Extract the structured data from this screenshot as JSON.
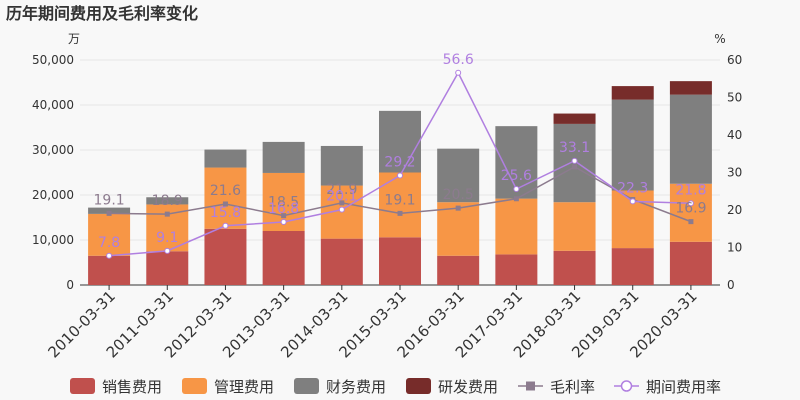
{
  "chart_data": {
    "type": "bar",
    "title": "历年期间费用及毛利率变化",
    "left_unit": "万",
    "right_unit": "%",
    "categories": [
      "2010-03-31",
      "2011-03-31",
      "2012-03-31",
      "2013-03-31",
      "2014-03-31",
      "2015-03-31",
      "2016-03-31",
      "2017-03-31",
      "2018-03-31",
      "2019-03-31",
      "2020-03-31"
    ],
    "left_axis": {
      "min": 0,
      "max": 50000,
      "ticks": [
        "0",
        "10,000",
        "20,000",
        "30,000",
        "40,000",
        "50,000"
      ]
    },
    "right_axis": {
      "min": 0,
      "max": 60,
      "ticks": [
        "0",
        "10",
        "20",
        "30",
        "40",
        "50",
        "60"
      ]
    },
    "bar_series": [
      {
        "name": "销售费用",
        "color": "#c0504d",
        "values": [
          6500,
          7500,
          12500,
          12000,
          10300,
          10600,
          6500,
          6800,
          7600,
          8200,
          9600
        ]
      },
      {
        "name": "管理费用",
        "color": "#f79646",
        "values": [
          9300,
          10400,
          13600,
          12900,
          11800,
          14400,
          11900,
          12400,
          10800,
          12800,
          12900
        ]
      },
      {
        "name": "财务费用",
        "color": "#7f7f7f",
        "values": [
          1400,
          1600,
          4000,
          6900,
          8800,
          13700,
          11900,
          16100,
          17400,
          20200,
          19800
        ]
      },
      {
        "name": "研发费用",
        "color": "#772c2a",
        "values": [
          0,
          0,
          0,
          0,
          0,
          0,
          0,
          0,
          2300,
          3000,
          3000
        ]
      }
    ],
    "line_series": [
      {
        "name": "毛利率",
        "color": "#8c7b8e",
        "marker": "square",
        "values": [
          19.1,
          18.9,
          21.6,
          18.5,
          21.9,
          19.1,
          20.5,
          23.0,
          31.5,
          22.8,
          16.9
        ],
        "labels": [
          "19.1",
          "18.9",
          "21.6",
          "18.5",
          "21.9",
          "19.1",
          "20.5",
          "",
          "",
          "",
          "16.9"
        ]
      },
      {
        "name": "期间费用率",
        "color": "#b07fe0",
        "marker": "circle",
        "values": [
          7.8,
          9.1,
          15.8,
          16.8,
          20.1,
          29.2,
          56.6,
          25.6,
          33.1,
          22.3,
          21.8
        ],
        "labels": [
          "7.8",
          "9.1",
          "15.8",
          "16.8",
          "20.1",
          "29.2",
          "56.6",
          "25.6",
          "33.1",
          "22.3",
          "21.8"
        ]
      }
    ]
  }
}
